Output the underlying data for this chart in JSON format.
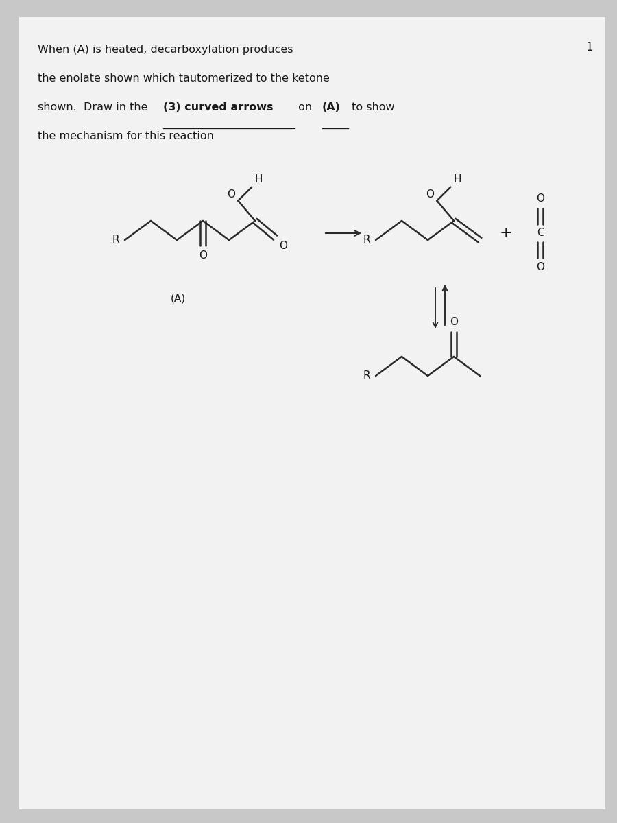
{
  "bg_color": "#c8c8c8",
  "paper_color": "#f2f2f2",
  "text_color": "#1a1a1a",
  "line_color": "#2a2a2a",
  "title_line1": "When (A) is heated, decarboxylation produces",
  "title_line2": "the enolate shown which tautomerized to the ketone",
  "title_line3_pre": "shown.  Draw in the  ",
  "title_line3_bold": "(3) curved arrows",
  "title_line3_mid": " on ",
  "title_line3_bold2": "(A)",
  "title_line3_post": " to show",
  "title_line4": "the mechanism for this reaction",
  "page_number": "1",
  "label_A": "(A)"
}
